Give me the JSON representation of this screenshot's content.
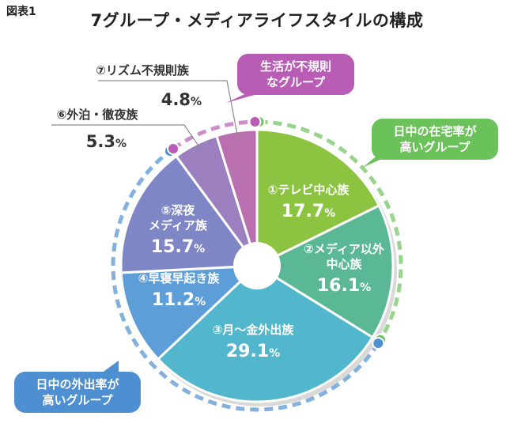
{
  "figure_label": "図表1",
  "title": "7グループ・メディアライフスタイルの構成",
  "chart_data": {
    "type": "pie",
    "title": "7グループ・メディアライフスタイルの構成",
    "slices": [
      {
        "label_lines": [
          "①テレビ中心族"
        ],
        "value": 17.7,
        "display": "17.7",
        "color": "#8cc341"
      },
      {
        "label_lines": [
          "②メディア以外",
          "中心族"
        ],
        "value": 16.1,
        "display": "16.1",
        "color": "#5bb894"
      },
      {
        "label_lines": [
          "③月～金外出族"
        ],
        "value": 29.1,
        "display": "29.1",
        "color": "#52b7cd"
      },
      {
        "label_lines": [
          "④早寝早起き族"
        ],
        "value": 11.2,
        "display": "11.2",
        "color": "#5e9ed8"
      },
      {
        "label_lines": [
          "⑤深夜",
          "メディア族"
        ],
        "value": 15.7,
        "display": "15.7",
        "color": "#7e86c6"
      },
      {
        "label_lines": [
          "⑥外泊・徹夜族"
        ],
        "value": 5.3,
        "display": "5.3",
        "color": "#9b7fbe"
      },
      {
        "label_lines": [
          "⑦リズム不規則族"
        ],
        "value": 4.8,
        "display": "4.8",
        "color": "#b96fb0"
      }
    ],
    "unit": "%",
    "groups": [
      {
        "lines": [
          "日中の在宅率が",
          "高いグループ"
        ],
        "color": "#6cc25a"
      },
      {
        "lines": [
          "日中の外出率が",
          "高いグループ"
        ],
        "color": "#4d8fd1"
      },
      {
        "lines": [
          "生活が不規則",
          "なグループ"
        ],
        "color": "#b85cb5"
      }
    ]
  }
}
